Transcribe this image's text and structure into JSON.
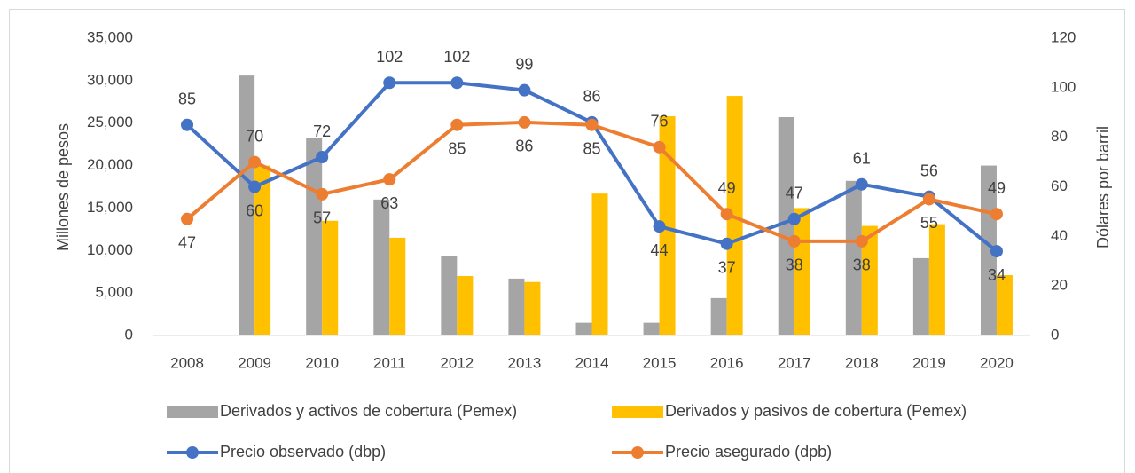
{
  "chart_data": {
    "type": "bar_line",
    "categories": [
      "2008",
      "2009",
      "2010",
      "2011",
      "2012",
      "2013",
      "2014",
      "2015",
      "2016",
      "2017",
      "2018",
      "2019",
      "2020"
    ],
    "ylabel": "Millones de pesos",
    "y2label": "Dólares por barril",
    "ylim": [
      0,
      35000
    ],
    "yticks": [
      0,
      {
        "value": 5000,
        "label": "5,000"
      },
      {
        "value": 10000,
        "label": "10,000"
      },
      {
        "value": 15000,
        "label": "15,000"
      },
      {
        "value": 20000,
        "label": "20,000"
      },
      {
        "value": 25000,
        "label": "25,000"
      },
      {
        "value": 30000,
        "label": "30,000"
      },
      {
        "value": 35000,
        "label": "35,000"
      }
    ],
    "y2lim": [
      0,
      120
    ],
    "y2ticks": [
      0,
      20,
      40,
      60,
      80,
      100,
      120
    ],
    "series": [
      {
        "name": "Derivados y activos de cobertura (Pemex)",
        "color": "#a5a5a5",
        "kind": "bar",
        "values": [
          0,
          30600,
          23300,
          16000,
          9300,
          6700,
          1500,
          1500,
          4400,
          25700,
          18200,
          9100,
          20000
        ]
      },
      {
        "name": "Derivados y pasivos de cobertura (Pemex)",
        "color": "#ffc000",
        "kind": "bar",
        "values": [
          0,
          20000,
          13500,
          11500,
          7000,
          6300,
          16700,
          25800,
          28200,
          15000,
          12900,
          13100,
          7100
        ]
      },
      {
        "name": "Precio observado (dbp)",
        "color": "#4472c4",
        "kind": "line",
        "axis": "y2",
        "values": [
          85,
          60,
          72,
          102,
          102,
          99,
          86,
          44,
          37,
          47,
          61,
          56,
          34
        ]
      },
      {
        "name": "Precio asegurado (dpb)",
        "color": "#ed7d31",
        "kind": "line",
        "axis": "y2",
        "values": [
          47,
          70,
          57,
          63,
          85,
          86,
          85,
          76,
          49,
          38,
          38,
          55,
          49
        ]
      }
    ]
  }
}
